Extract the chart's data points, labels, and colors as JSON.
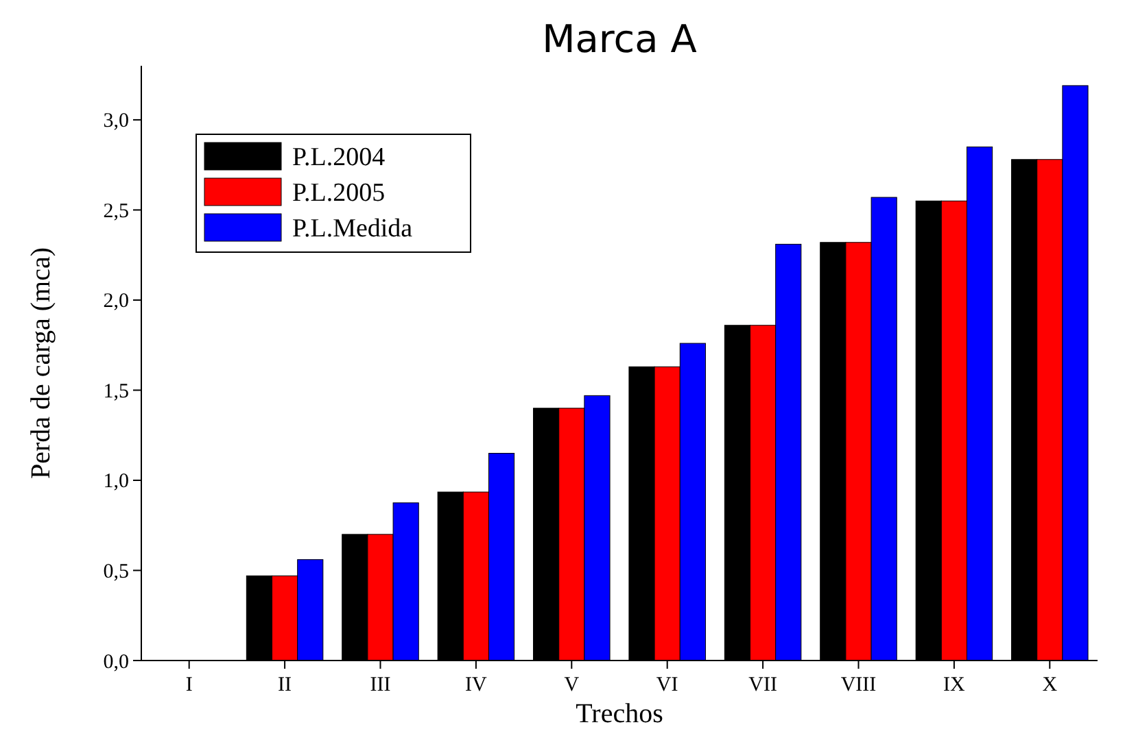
{
  "chart_data": {
    "type": "bar",
    "title": "Marca A",
    "xlabel": "Trechos",
    "ylabel": "Perda de carga (mca)",
    "categories": [
      "I",
      "II",
      "III",
      "IV",
      "V",
      "VI",
      "VII",
      "VIII",
      "IX",
      "X"
    ],
    "series": [
      {
        "name": "P.L.2004",
        "color": "#000000",
        "values": [
          0,
          0.47,
          0.7,
          0.935,
          1.4,
          1.63,
          1.86,
          2.32,
          2.55,
          2.78
        ]
      },
      {
        "name": "P.L.2005",
        "color": "#ff0000",
        "values": [
          0,
          0.47,
          0.7,
          0.935,
          1.4,
          1.63,
          1.86,
          2.32,
          2.55,
          2.78
        ]
      },
      {
        "name": "P.L.Medida",
        "color": "#0000ff",
        "values": [
          0,
          0.56,
          0.875,
          1.15,
          1.47,
          1.76,
          2.31,
          2.57,
          2.85,
          3.19
        ]
      }
    ],
    "ylim": [
      0,
      3.3
    ],
    "yticks": [
      {
        "value": 0,
        "label": "0,0"
      },
      {
        "value": 0.5,
        "label": "0,5"
      },
      {
        "value": 1,
        "label": "1,0"
      },
      {
        "value": 1.5,
        "label": "1,5"
      },
      {
        "value": 2,
        "label": "2,0"
      },
      {
        "value": 2.5,
        "label": "2,5"
      },
      {
        "value": 3,
        "label": "3,0"
      }
    ],
    "grid": false,
    "legend": "top left"
  }
}
